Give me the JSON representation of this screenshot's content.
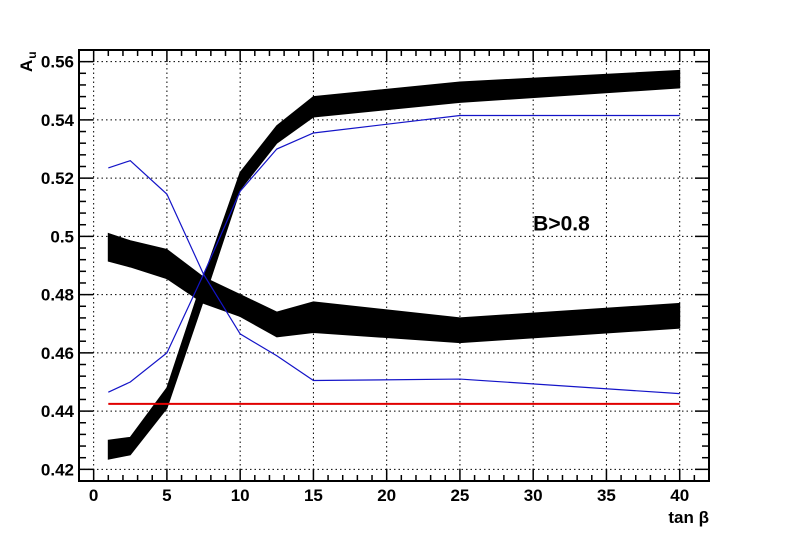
{
  "chart_data": {
    "type": "line",
    "title": "",
    "xlabel": "tan β",
    "ylabel": "A",
    "ylabel_sub": "u",
    "xlim": [
      -1,
      42
    ],
    "ylim": [
      0.416,
      0.564
    ],
    "x_ticks": [
      0,
      5,
      10,
      15,
      20,
      25,
      30,
      35,
      40
    ],
    "x_tick_labels": [
      "0",
      "5",
      "10",
      "15",
      "20",
      "25",
      "30",
      "35",
      "40"
    ],
    "y_ticks": [
      0.42,
      0.44,
      0.46,
      0.48,
      0.5,
      0.52,
      0.54,
      0.56
    ],
    "y_tick_labels": [
      "0.42",
      "0.44",
      "0.46",
      "0.48",
      "0.5",
      "0.52",
      "0.54",
      "0.56"
    ],
    "grid": true,
    "annotation": {
      "text": "B>0.8",
      "x": 30,
      "y": 0.502
    },
    "bands": [
      {
        "color": "#000000",
        "x": [
          1,
          2.5,
          5,
          7.5,
          10,
          12.5,
          15,
          25,
          40
        ],
        "lower": [
          0.4235,
          0.425,
          0.441,
          0.478,
          0.516,
          0.532,
          0.541,
          0.546,
          0.551
        ],
        "upper": [
          0.43,
          0.431,
          0.448,
          0.486,
          0.522,
          0.538,
          0.548,
          0.553,
          0.557
        ]
      },
      {
        "color": "#000000",
        "x": [
          1,
          2.5,
          5,
          7.5,
          10,
          12.5,
          15,
          25,
          40
        ],
        "lower": [
          0.4915,
          0.4895,
          0.4855,
          0.477,
          0.4725,
          0.4655,
          0.467,
          0.4635,
          0.4685
        ],
        "upper": [
          0.501,
          0.4985,
          0.4955,
          0.486,
          0.48,
          0.474,
          0.4775,
          0.472,
          0.477
        ]
      }
    ],
    "lines": [
      {
        "color": "#1414c8",
        "x": [
          1,
          2.5,
          5,
          7.5,
          10,
          12.5,
          15,
          25,
          40
        ],
        "y": [
          0.5235,
          0.526,
          0.5145,
          0.487,
          0.4665,
          0.459,
          0.4505,
          0.451,
          0.446
        ]
      },
      {
        "color": "#1414c8",
        "x": [
          1,
          2.5,
          5,
          7.5,
          10,
          12.5,
          15,
          25,
          40
        ],
        "y": [
          0.4465,
          0.45,
          0.46,
          0.487,
          0.5155,
          0.53,
          0.5355,
          0.5415,
          0.5415
        ]
      },
      {
        "color": "#e00000",
        "x": [
          1,
          40
        ],
        "y": [
          0.4425,
          0.4425
        ]
      }
    ]
  }
}
